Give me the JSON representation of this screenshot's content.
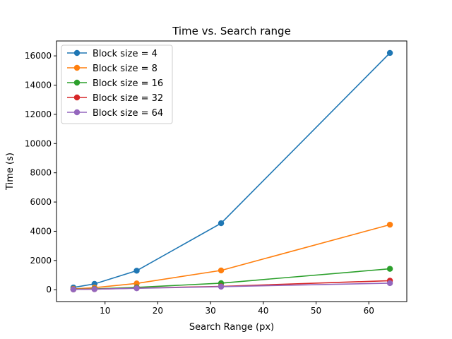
{
  "chart_data": {
    "type": "line",
    "title": "Time vs. Search range",
    "xlabel": "Search Range (px)",
    "ylabel": "Time (s)",
    "x": [
      4,
      8,
      16,
      32,
      64
    ],
    "xlim": [
      0.8,
      67.2
    ],
    "ylim": [
      -810,
      17020
    ],
    "xticks": [
      10,
      20,
      30,
      40,
      50,
      60
    ],
    "yticks": [
      0,
      2000,
      4000,
      6000,
      8000,
      10000,
      12000,
      14000,
      16000
    ],
    "grid": false,
    "legend_position": "top-left",
    "series": [
      {
        "name": "Block size = 4",
        "color": "#1f77b4",
        "values": [
          150,
          400,
          1300,
          4550,
          16200
        ]
      },
      {
        "name": "Block size = 8",
        "color": "#ff7f0e",
        "values": [
          60,
          140,
          430,
          1320,
          4450
        ]
      },
      {
        "name": "Block size = 16",
        "color": "#2ca02c",
        "values": [
          30,
          60,
          160,
          450,
          1430
        ]
      },
      {
        "name": "Block size = 32",
        "color": "#d62728",
        "values": [
          20,
          40,
          110,
          230,
          620
        ]
      },
      {
        "name": "Block size = 64",
        "color": "#9467bd",
        "values": [
          20,
          40,
          100,
          210,
          450
        ]
      }
    ]
  }
}
